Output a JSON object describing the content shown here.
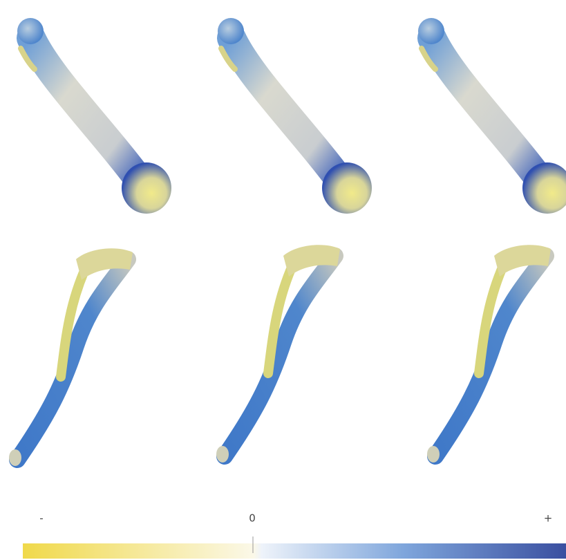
{
  "colorbar": {
    "labels": [
      "-",
      "0",
      "+"
    ]
  }
}
